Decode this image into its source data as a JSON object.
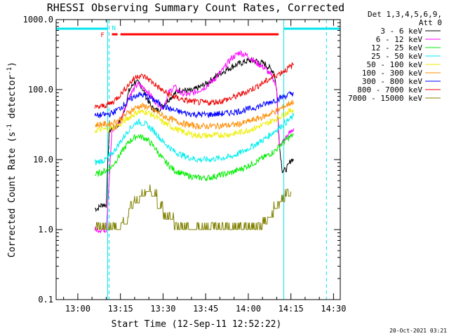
{
  "chart_data": {
    "type": "line",
    "title": "RHESSI Observing Summary Count Rates, Corrected",
    "xlabel": "Start Time (12-Sep-11 12:52:22)",
    "ylabel": "Corrected Count Rate (s⁻¹ detector⁻¹)",
    "ylabel_parts": [
      "Corrected Count Rate (s",
      "-1",
      " detector",
      "-1",
      ")"
    ],
    "date_stamp": "20-Oct-2021 03:21",
    "detector_info": [
      "Det 1,3,4,5,6,9,",
      "Att 0"
    ],
    "y_scale": "log",
    "ylim": [
      0.1,
      1000
    ],
    "xlim": [
      "12:52:22",
      "14:32:22"
    ],
    "y_ticks": [
      "0.1",
      "1.0",
      "10.0",
      "100.0",
      "1000.0"
    ],
    "x_ticks": [
      "13:00",
      "13:15",
      "13:30",
      "13:45",
      "14:00",
      "14:15",
      "14:30"
    ],
    "legend_position": "right",
    "flags": {
      "labels": [
        "F",
        "N"
      ],
      "colors": {
        "saa": "#00e5ee",
        "night": "#00e5ee",
        "flare": "#ff0000"
      },
      "saa_bars": [
        [
          "12:52:22",
          "13:10:30"
        ],
        [
          "14:12:30",
          "14:32:22"
        ]
      ],
      "night_markers": [
        "13:10:30",
        "14:12:30"
      ],
      "dashed_lines": [
        "13:11:00",
        "14:27:30"
      ],
      "flare_bar": [
        "13:15:00",
        "14:10:40"
      ],
      "flare_short": [
        "13:12:00",
        "13:14:00"
      ]
    },
    "series": [
      {
        "name": "3 - 6 keV",
        "color": "#000000",
        "x": [
          "13:06",
          "13:07",
          "13:08",
          "13:09",
          "13:10",
          "13:11",
          "13:12",
          "13:14",
          "13:16",
          "13:18",
          "13:20",
          "13:22",
          "13:24",
          "13:26",
          "13:28",
          "13:30",
          "13:33",
          "13:36",
          "13:40",
          "13:45",
          "13:50",
          "13:55",
          "14:00",
          "14:03",
          "14:06",
          "14:09",
          "14:10",
          "14:11",
          "14:12",
          "14:13",
          "14:14",
          "14:15",
          "14:16"
        ],
        "y": [
          2.0,
          2.0,
          2.2,
          2.3,
          2.2,
          25,
          28,
          30,
          45,
          95,
          130,
          120,
          80,
          55,
          50,
          60,
          80,
          100,
          95,
          120,
          170,
          220,
          260,
          255,
          230,
          180,
          100,
          15,
          7,
          7,
          8,
          10,
          10
        ]
      },
      {
        "name": "6 - 12 keV",
        "color": "#ff00ff",
        "x": [
          "13:06",
          "13:08",
          "13:10",
          "13:12",
          "13:15",
          "13:18",
          "13:21",
          "13:24",
          "13:27",
          "13:30",
          "13:32",
          "13:34",
          "13:36",
          "13:39",
          "13:42",
          "13:45",
          "13:48",
          "13:51",
          "13:54",
          "13:57",
          "14:00",
          "14:03",
          "14:06",
          "14:09",
          "14:10",
          "14:11",
          "14:13",
          "14:15",
          "14:16"
        ],
        "y": [
          1.0,
          1.0,
          1.0,
          25,
          35,
          80,
          120,
          100,
          70,
          55,
          90,
          110,
          90,
          85,
          95,
          110,
          140,
          190,
          280,
          340,
          300,
          240,
          200,
          140,
          100,
          15,
          20,
          25,
          28
        ]
      },
      {
        "name": "12 - 25 keV",
        "color": "#00ee00",
        "x": [
          "13:06",
          "13:08",
          "13:10",
          "13:12",
          "13:15",
          "13:18",
          "13:21",
          "13:24",
          "13:27",
          "13:30",
          "13:34",
          "13:38",
          "13:42",
          "13:46",
          "13:50",
          "13:54",
          "13:58",
          "14:02",
          "14:06",
          "14:09",
          "14:12",
          "14:14",
          "14:16"
        ],
        "y": [
          6,
          6.5,
          7,
          8,
          12,
          18,
          22,
          20,
          15,
          10,
          7,
          6,
          5.5,
          5.5,
          6,
          6.5,
          7.5,
          9,
          11,
          13,
          17,
          20,
          23
        ]
      },
      {
        "name": "25 - 50 keV",
        "color": "#00eeee",
        "x": [
          "13:06",
          "13:08",
          "13:10",
          "13:12",
          "13:15",
          "13:18",
          "13:21",
          "13:24",
          "13:27",
          "13:30",
          "13:34",
          "13:38",
          "13:42",
          "13:46",
          "13:50",
          "13:54",
          "13:58",
          "14:02",
          "14:06",
          "14:09",
          "14:12",
          "14:14",
          "14:16"
        ],
        "y": [
          9,
          9.5,
          10,
          12,
          18,
          27,
          35,
          32,
          25,
          18,
          13,
          11,
          10,
          10,
          10.5,
          11,
          13,
          16,
          20,
          25,
          31,
          36,
          42
        ]
      },
      {
        "name": "50 - 100 keV",
        "color": "#eeee00",
        "x": [
          "13:06",
          "13:08",
          "13:10",
          "13:12",
          "13:15",
          "13:18",
          "13:21",
          "13:24",
          "13:27",
          "13:30",
          "13:34",
          "13:38",
          "13:42",
          "13:46",
          "13:50",
          "13:54",
          "13:58",
          "14:02",
          "14:06",
          "14:09",
          "14:12",
          "14:14",
          "14:16"
        ],
        "y": [
          26,
          27,
          27,
          28,
          32,
          40,
          48,
          48,
          42,
          34,
          28,
          24,
          22,
          22,
          22.5,
          23,
          25,
          28,
          32,
          37,
          43,
          48,
          52
        ]
      },
      {
        "name": "100 - 300 keV",
        "color": "#ff8c00",
        "x": [
          "13:06",
          "13:08",
          "13:10",
          "13:12",
          "13:15",
          "13:18",
          "13:21",
          "13:24",
          "13:27",
          "13:30",
          "13:34",
          "13:38",
          "13:42",
          "13:46",
          "13:50",
          "13:54",
          "13:58",
          "14:02",
          "14:06",
          "14:09",
          "14:12",
          "14:14",
          "14:16"
        ],
        "y": [
          31,
          32,
          32,
          33,
          38,
          48,
          57,
          58,
          50,
          42,
          36,
          32,
          30,
          30,
          30.5,
          31,
          33,
          37,
          42,
          48,
          55,
          62,
          68
        ]
      },
      {
        "name": "300 - 800 keV",
        "color": "#0000ff",
        "x": [
          "13:06",
          "13:08",
          "13:10",
          "13:12",
          "13:15",
          "13:18",
          "13:21",
          "13:24",
          "13:27",
          "13:30",
          "13:34",
          "13:38",
          "13:42",
          "13:46",
          "13:50",
          "13:54",
          "13:58",
          "14:02",
          "14:06",
          "14:09",
          "14:12",
          "14:14",
          "14:16"
        ],
        "y": [
          42,
          43,
          44,
          46,
          55,
          70,
          85,
          82,
          70,
          58,
          50,
          46,
          44,
          44,
          45,
          47,
          50,
          55,
          62,
          70,
          78,
          84,
          90
        ]
      },
      {
        "name": "800 - 7000 keV",
        "color": "#ee0000",
        "x": [
          "13:06",
          "13:08",
          "13:10",
          "13:12",
          "13:15",
          "13:18",
          "13:21",
          "13:24",
          "13:27",
          "13:30",
          "13:34",
          "13:38",
          "13:42",
          "13:46",
          "13:50",
          "13:54",
          "13:58",
          "14:02",
          "14:06",
          "14:09",
          "14:12",
          "14:14",
          "14:16"
        ],
        "y": [
          55,
          57,
          60,
          65,
          85,
          120,
          160,
          150,
          120,
          95,
          78,
          70,
          66,
          65,
          68,
          75,
          88,
          105,
          130,
          155,
          180,
          200,
          230
        ]
      },
      {
        "name": "7000 - 15000 keV",
        "color": "#808000",
        "x": [
          "13:06",
          "13:10",
          "13:12",
          "13:14",
          "13:16",
          "13:18",
          "13:20",
          "13:22",
          "13:24",
          "13:26",
          "13:28",
          "13:30",
          "13:34",
          "13:38",
          "13:42",
          "13:46",
          "13:50",
          "13:54",
          "13:58",
          "14:02",
          "14:05",
          "14:07",
          "14:09",
          "14:11",
          "14:13",
          "14:15"
        ],
        "y": [
          1.0,
          1.0,
          1.0,
          1.0,
          1.2,
          2.0,
          2.4,
          3.0,
          3.5,
          3.0,
          2.0,
          1.4,
          1.0,
          1.0,
          1.0,
          1.0,
          1.0,
          1.0,
          1.0,
          1.0,
          1.2,
          1.5,
          2.0,
          2.5,
          3.0,
          3.5
        ]
      }
    ]
  }
}
